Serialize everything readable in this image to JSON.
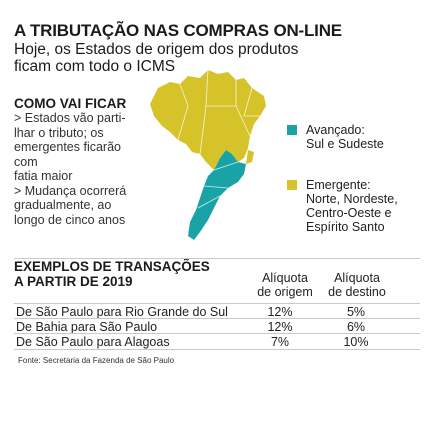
{
  "header": {
    "title": "A TRIBUTAÇÃO NAS COMPRAS ON-LINE",
    "subtitle": "Hoje, os Estados de origem dos produtos ficam com todo o ICMS"
  },
  "como_vai_ficar": {
    "heading": "COMO VAI FICAR",
    "lines": [
      "> Estados vão parti-",
      "lhar o tributo; os",
      "emergentes ficarão",
      "com",
      "fatia maior",
      "> Mudança ocorrerá",
      "gradualmente, ao",
      "longo de cinco anos"
    ]
  },
  "legend": {
    "items": [
      {
        "label_lines": [
          "Avançado:",
          "Sul e Sudeste"
        ],
        "color": "#1aa3a6"
      },
      {
        "label_lines": [
          "Emergente:",
          "Norte, Nordeste,",
          "Centro-Oeste e",
          "Espírito Santo"
        ],
        "color": "#d6c32a"
      }
    ]
  },
  "map_colors": {
    "advanced": "#1aa3a6",
    "emerging": "#d6c32a"
  },
  "examples": {
    "heading_lines": [
      "EXEMPLOS DE TRANSAÇÕES",
      "A PARTIR DE 2019"
    ],
    "columns": [
      {
        "lines": [
          "Alíquota",
          "de origem"
        ]
      },
      {
        "lines": [
          "Alíquota",
          "de destino"
        ]
      }
    ],
    "rows": [
      {
        "route": "De São Paulo para Rio Grande do Sul",
        "origem": "12%",
        "destino": "5%"
      },
      {
        "route": "De Bahia para São Paulo",
        "origem": "12%",
        "destino": "6%"
      },
      {
        "route": "De São Paulo para Alagoas",
        "origem": "7%",
        "destino": "10%"
      }
    ]
  },
  "source": "Fonte: Secretaria da Fazenda de São Paulo"
}
